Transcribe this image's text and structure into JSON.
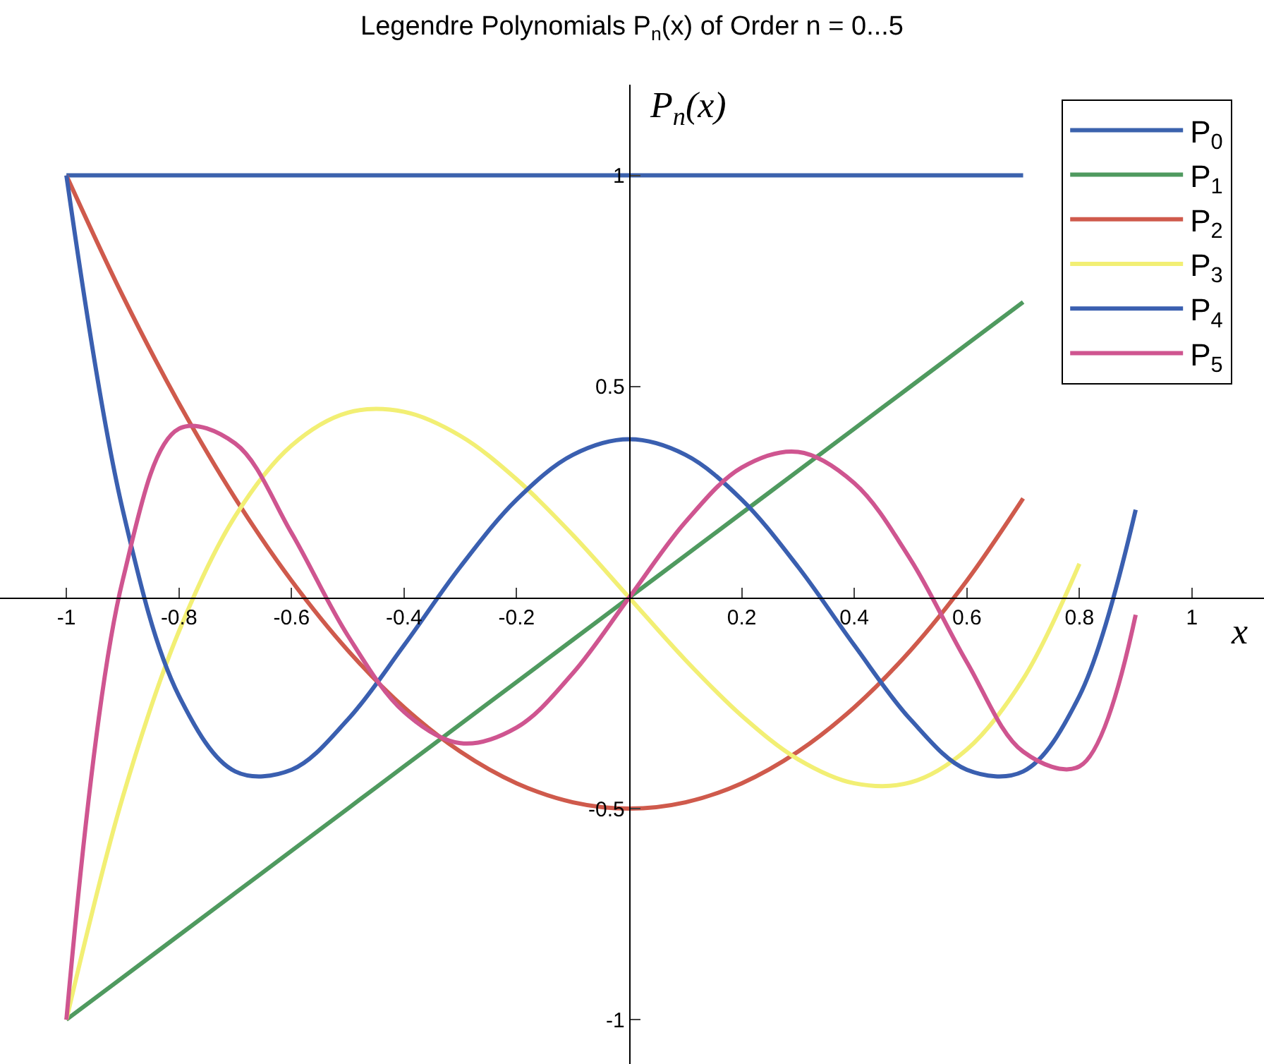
{
  "chart_data": {
    "type": "line",
    "title": "Legendre Polynomials P$_{n}$(x) of Order n = 0...5",
    "xlabel": "x",
    "ylabel": "P$_{n}$(x)",
    "x": [
      -1,
      -0.9,
      -0.8,
      -0.7,
      -0.6,
      -0.5,
      -0.4,
      -0.3,
      -0.2,
      -0.1,
      0,
      0.1,
      0.2,
      0.3,
      0.4,
      0.5,
      0.6,
      0.7,
      0.8,
      0.9
    ],
    "series": [
      {
        "name": "P$_{0}$",
        "color": "#3b62ad",
        "values": [
          1,
          1,
          1,
          1,
          1,
          1,
          1,
          1,
          1,
          1,
          1,
          1,
          1,
          1,
          1,
          1,
          1,
          1,
          null,
          null
        ]
      },
      {
        "name": "P$_{1}$",
        "color": "#4f9a5f",
        "values": [
          -1,
          -0.9,
          -0.8,
          -0.7,
          -0.6,
          -0.5,
          -0.4,
          -0.3,
          -0.2,
          -0.1,
          0,
          0.1,
          0.2,
          0.3,
          0.4,
          0.5,
          0.6,
          0.7,
          null,
          null
        ]
      },
      {
        "name": "P$_{2}$",
        "color": "#cf5a4c",
        "values": [
          1,
          0.715,
          0.46,
          0.235,
          0.04,
          -0.125,
          -0.26,
          -0.365,
          -0.44,
          -0.485,
          -0.5,
          -0.485,
          -0.44,
          -0.365,
          -0.26,
          -0.125,
          0.04,
          0.235,
          null,
          null
        ]
      },
      {
        "name": "P$_{3}$",
        "color": "#f2ef74",
        "values": [
          -1,
          -0.473,
          -0.08,
          0.193,
          0.36,
          0.438,
          0.44,
          0.383,
          0.28,
          0.148,
          0,
          -0.148,
          -0.28,
          -0.383,
          -0.44,
          -0.438,
          -0.36,
          -0.193,
          0.08,
          null
        ]
      },
      {
        "name": "P$_{4}$",
        "color": "#3a5fb0",
        "values": [
          1,
          0.208,
          -0.233,
          -0.412,
          -0.408,
          -0.289,
          -0.113,
          0.073,
          0.232,
          0.338,
          0.375,
          0.338,
          0.232,
          0.073,
          -0.113,
          -0.289,
          -0.408,
          -0.412,
          -0.233,
          0.208
        ]
      },
      {
        "name": "P$_{5}$",
        "color": "#cf5590",
        "values": [
          -1,
          0.041,
          0.4,
          0.365,
          0.153,
          -0.09,
          -0.271,
          -0.345,
          -0.308,
          -0.179,
          0,
          0.179,
          0.308,
          0.345,
          0.271,
          0.09,
          -0.153,
          -0.365,
          -0.4,
          -0.041
        ]
      }
    ],
    "xlim": [
      -1.118,
      1.128
    ],
    "ylim": [
      -1.105,
      1.215
    ],
    "xticks": [
      -1,
      -0.8,
      -0.6,
      -0.4,
      -0.2,
      0.2,
      0.4,
      0.6,
      0.8,
      1
    ],
    "yticks": [
      -1,
      -0.5,
      0.5,
      1
    ],
    "grid": false,
    "legend": "top right",
    "line_style": "solid",
    "marker": "none"
  }
}
